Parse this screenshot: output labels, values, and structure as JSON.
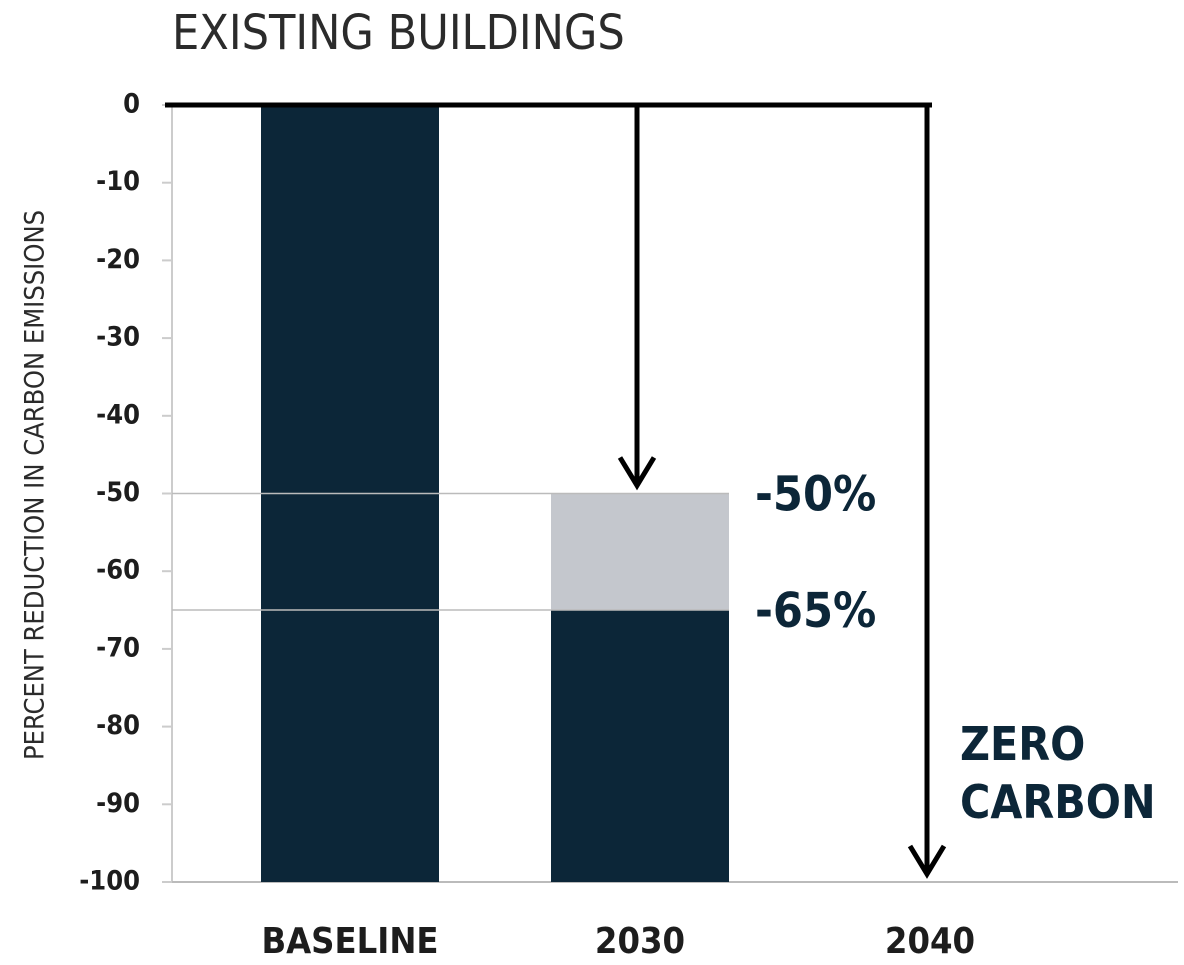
{
  "chart_data": {
    "type": "bar",
    "title": "EXISTING BUILDINGS",
    "y_label": "PERCENT REDUCTION IN CARBON EMISSIONS",
    "categories": [
      "BASELINE",
      "2030",
      "2040"
    ],
    "series": [
      {
        "color": "#c4c7cd",
        "values": [
          null,
          -50,
          null
        ]
      },
      {
        "color": "#0c2638",
        "values": [
          0,
          -65,
          null
        ]
      }
    ],
    "arrow_to": [
      null,
      -50,
      -100
    ],
    "annotations": [
      {
        "label": "-50%",
        "value": -50
      },
      {
        "label": "-65%",
        "value": -65
      },
      {
        "label": "ZERO CARBON",
        "value": -100
      }
    ],
    "ylim": [
      -100,
      0
    ],
    "yticks": [
      0,
      -10,
      -20,
      -30,
      -40,
      -50,
      -60,
      -70,
      -80,
      -90,
      -100
    ],
    "grid": false
  }
}
